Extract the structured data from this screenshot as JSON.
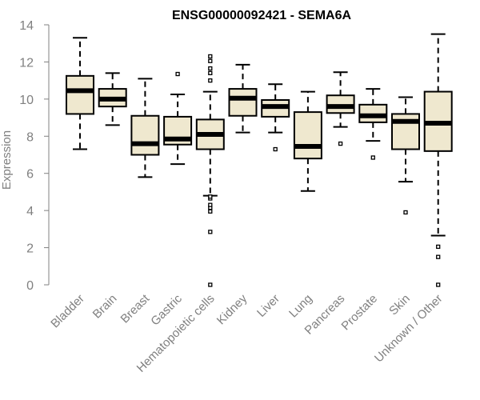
{
  "chart_data": {
    "type": "boxplot",
    "title": "ENSG00000092421 - SEMA6A",
    "xlabel": "",
    "ylabel": "Expression",
    "ylim": [
      0,
      14
    ],
    "yticks": [
      0,
      2,
      4,
      6,
      8,
      10,
      12,
      14
    ],
    "grid": false,
    "box_fill": "#efe8cf",
    "box_stroke": "#000000",
    "categories": [
      "Bladder",
      "Brain",
      "Breast",
      "Gastric",
      "Hematopoietic cells",
      "Kidney",
      "Liver",
      "Lung",
      "Pancreas",
      "Prostate",
      "Skin",
      "Unknown / Other"
    ],
    "boxes": [
      {
        "name": "Bladder",
        "whisker_low": 7.3,
        "q1": 9.2,
        "median": 10.45,
        "q3": 11.25,
        "whisker_high": 13.3,
        "outliers": []
      },
      {
        "name": "Brain",
        "whisker_low": 8.6,
        "q1": 9.6,
        "median": 10.0,
        "q3": 10.55,
        "whisker_high": 11.4,
        "outliers": []
      },
      {
        "name": "Breast",
        "whisker_low": 5.8,
        "q1": 7.0,
        "median": 7.6,
        "q3": 9.1,
        "whisker_high": 11.1,
        "outliers": []
      },
      {
        "name": "Gastric",
        "whisker_low": 6.5,
        "q1": 7.55,
        "median": 7.85,
        "q3": 9.05,
        "whisker_high": 10.25,
        "outliers": [
          11.35
        ]
      },
      {
        "name": "Hematopoietic cells",
        "whisker_low": 4.8,
        "q1": 7.3,
        "median": 8.1,
        "q3": 8.9,
        "whisker_high": 10.4,
        "outliers": [
          0.0,
          2.85,
          3.95,
          4.15,
          4.3,
          4.65,
          4.75,
          11.0,
          11.4,
          11.65,
          12.05,
          12.3
        ]
      },
      {
        "name": "Kidney",
        "whisker_low": 8.2,
        "q1": 9.1,
        "median": 10.05,
        "q3": 10.55,
        "whisker_high": 11.85,
        "outliers": []
      },
      {
        "name": "Liver",
        "whisker_low": 8.2,
        "q1": 9.05,
        "median": 9.6,
        "q3": 9.95,
        "whisker_high": 10.8,
        "outliers": [
          7.3
        ]
      },
      {
        "name": "Lung",
        "whisker_low": 5.05,
        "q1": 6.8,
        "median": 7.45,
        "q3": 9.3,
        "whisker_high": 10.4,
        "outliers": []
      },
      {
        "name": "Pancreas",
        "whisker_low": 8.5,
        "q1": 9.25,
        "median": 9.6,
        "q3": 10.2,
        "whisker_high": 11.45,
        "outliers": [
          7.6
        ]
      },
      {
        "name": "Prostate",
        "whisker_low": 7.75,
        "q1": 8.75,
        "median": 9.1,
        "q3": 9.7,
        "whisker_high": 10.55,
        "outliers": [
          6.85
        ]
      },
      {
        "name": "Skin",
        "whisker_low": 5.55,
        "q1": 7.3,
        "median": 8.8,
        "q3": 9.2,
        "whisker_high": 10.1,
        "outliers": [
          3.9
        ]
      },
      {
        "name": "Unknown / Other",
        "whisker_low": 2.65,
        "q1": 7.2,
        "median": 8.7,
        "q3": 10.4,
        "whisker_high": 13.5,
        "outliers": [
          0.0,
          1.5,
          2.05
        ]
      }
    ]
  }
}
